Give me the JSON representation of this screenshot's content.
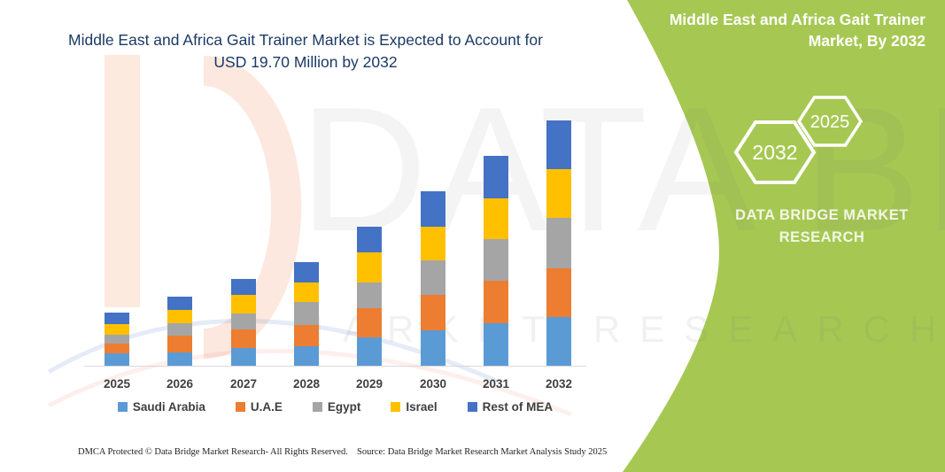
{
  "page": {
    "title_line1": "Middle East and Africa Gait Trainer Market is Expected to Account for",
    "title_line2": "USD 19.70 Million by 2032"
  },
  "colors": {
    "accent_green": "#a6c853",
    "title_navy": "#1b3a66",
    "label_gray": "#3f3f3f",
    "axis_line": "#d9d9d9"
  },
  "chart_data": {
    "type": "bar",
    "stacked": true,
    "title": "Middle East and Africa Gait Trainer Market is Expected to Account for USD 19.70 Million by 2032",
    "unit": "USD Million",
    "categories": [
      "2025",
      "2026",
      "2027",
      "2028",
      "2029",
      "2030",
      "2031",
      "2032"
    ],
    "series": [
      {
        "name": "Saudi Arabia",
        "color": "#5b9bd5",
        "values": [
          1.0,
          1.07,
          1.42,
          1.54,
          2.26,
          2.85,
          3.42,
          3.92
        ]
      },
      {
        "name": "U.A.E",
        "color": "#ed7d31",
        "values": [
          0.78,
          1.35,
          1.5,
          1.73,
          2.37,
          2.85,
          3.44,
          3.92
        ]
      },
      {
        "name": "Egypt",
        "color": "#a5a5a5",
        "values": [
          0.71,
          1.02,
          1.3,
          1.83,
          2.09,
          2.78,
          3.35,
          4.03
        ]
      },
      {
        "name": "Israel",
        "color": "#ffc000",
        "values": [
          0.88,
          1.07,
          1.47,
          1.59,
          2.37,
          2.68,
          3.25,
          3.96
        ]
      },
      {
        "name": "Rest of MEA",
        "color": "#4472c4",
        "values": [
          0.9,
          1.07,
          1.3,
          1.66,
          2.11,
          2.9,
          3.4,
          3.87
        ]
      }
    ],
    "totals": [
      4.27,
      5.58,
      6.99,
      8.35,
      11.2,
      14.06,
      16.86,
      19.7
    ],
    "legend_position": "bottom",
    "grid": false,
    "y_axis_visible": false
  },
  "side_panel": {
    "title_line1": "Middle East and Africa Gait Trainer",
    "title_line2": "Market, By 2032",
    "hexagon_back_year": "2032",
    "hexagon_front_year": "2025",
    "brand_line1": "DATA BRIDGE MARKET",
    "brand_line2": "RESEARCH"
  },
  "watermark": {
    "text_large": "DATA BRIDGE",
    "text_spaced": "MARKET RESEARCH"
  },
  "footer": {
    "left": "DMCA Protected © Data Bridge Market Research-  All Rights Reserved.",
    "source": "Source: Data Bridge Market Research  Market Analysis Study 2025"
  }
}
